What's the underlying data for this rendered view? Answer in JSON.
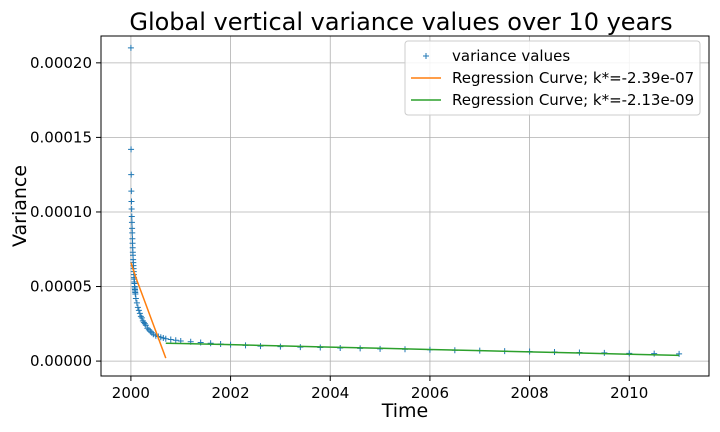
{
  "chart_data": {
    "type": "scatter",
    "title": "Global vertical variance values over 10 years",
    "xlabel": "Time",
    "ylabel": "Variance",
    "xlim": [
      1999.4,
      2011.6
    ],
    "ylim": [
      -1e-05,
      0.000218
    ],
    "grid": true,
    "legend_position": "top-right",
    "x_ticks": [
      {
        "value": 2000,
        "label": "2000"
      },
      {
        "value": 2002,
        "label": "2002"
      },
      {
        "value": 2004,
        "label": "2004"
      },
      {
        "value": 2006,
        "label": "2006"
      },
      {
        "value": 2008,
        "label": "2008"
      },
      {
        "value": 2010,
        "label": "2010"
      }
    ],
    "y_ticks": [
      {
        "value": 0.0,
        "label": "0.00000"
      },
      {
        "value": 5e-05,
        "label": "0.00005"
      },
      {
        "value": 0.0001,
        "label": "0.00010"
      },
      {
        "value": 0.00015,
        "label": "0.00015"
      },
      {
        "value": 0.0002,
        "label": "0.00020"
      }
    ],
    "series": [
      {
        "name": "variance values",
        "kind": "scatter",
        "marker": "+",
        "color": "#1f77b4",
        "x": [
          2000.0,
          2000.003,
          2000.006,
          2000.009,
          2000.012,
          2000.015,
          2000.018,
          2000.021,
          2000.024,
          2000.027,
          2000.03,
          2000.033,
          2000.036,
          2000.039,
          2000.042,
          2000.045,
          2000.048,
          2000.051,
          2000.054,
          2000.057,
          2000.06,
          2000.063,
          2000.066,
          2000.069,
          2000.072,
          2000.075,
          2000.078,
          2000.081,
          2000.084,
          2000.087,
          2000.09,
          2000.1,
          2000.12,
          2000.14,
          2000.16,
          2000.18,
          2000.2,
          2000.22,
          2000.24,
          2000.26,
          2000.28,
          2000.3,
          2000.33,
          2000.36,
          2000.39,
          2000.42,
          2000.45,
          2000.5,
          2000.55,
          2000.6,
          2000.65,
          2000.7,
          2000.8,
          2000.9,
          2001.0,
          2001.2,
          2001.4,
          2001.6,
          2001.8,
          2002.0,
          2002.3,
          2002.6,
          2003.0,
          2003.4,
          2003.8,
          2004.2,
          2004.6,
          2005.0,
          2005.5,
          2006.0,
          2006.5,
          2007.0,
          2007.5,
          2008.0,
          2008.5,
          2009.0,
          2009.5,
          2010.0,
          2010.5,
          2011.0
        ],
        "y": [
          0.00021,
          0.000142,
          0.000125,
          0.000114,
          0.000107,
          0.000102,
          9.7e-05,
          9.3e-05,
          8.9e-05,
          8.6e-05,
          8.2e-05,
          7.9e-05,
          7.6e-05,
          7.3e-05,
          7.1e-05,
          6.8e-05,
          6.6e-05,
          6.4e-05,
          6.2e-05,
          6e-05,
          5.8e-05,
          5.6e-05,
          5.5e-05,
          5.3e-05,
          5.2e-05,
          5e-05,
          4.9e-05,
          4.8e-05,
          4.7e-05,
          4.6e-05,
          4.5e-05,
          4.2e-05,
          3.9e-05,
          3.6e-05,
          3.4e-05,
          3.2e-05,
          3e-05,
          2.9e-05,
          2.7e-05,
          2.6e-05,
          2.5e-05,
          2.4e-05,
          2.2e-05,
          2.1e-05,
          2e-05,
          1.9e-05,
          1.8e-05,
          1.7e-05,
          1.65e-05,
          1.6e-05,
          1.55e-05,
          1.5e-05,
          1.45e-05,
          1.4e-05,
          1.35e-05,
          1.3e-05,
          1.25e-05,
          1.2e-05,
          1.15e-05,
          1.1e-05,
          1.05e-05,
          1e-05,
          9.7e-06,
          9.4e-06,
          9.1e-06,
          8.8e-06,
          8.5e-06,
          8.2e-06,
          7.9e-06,
          7.6e-06,
          7.3e-06,
          7e-06,
          6.7e-06,
          6.4e-06,
          6.1e-06,
          5.8e-06,
          5.5e-06,
          5.2e-06,
          5e-06,
          4.8e-06
        ]
      },
      {
        "name": "Regression Curve; k*=-2.39e-07",
        "kind": "line",
        "color": "#ff7f0e",
        "x": [
          2000.0,
          2000.05,
          2000.1,
          2000.2,
          2000.3,
          2000.4,
          2000.5,
          2000.6,
          2000.7
        ],
        "y": [
          6.6e-05,
          6.1e-05,
          5.6e-05,
          4.7e-05,
          3.8e-05,
          2.9e-05,
          2e-05,
          1.1e-05,
          2e-06
        ]
      },
      {
        "name": "Regression Curve; k*=-2.13e-09",
        "kind": "line",
        "color": "#2ca02c",
        "x": [
          2000.7,
          2001.0,
          2002.0,
          2003.0,
          2004.0,
          2005.0,
          2006.0,
          2007.0,
          2008.0,
          2009.0,
          2010.0,
          2011.0
        ],
        "y": [
          1.2e-05,
          1.18e-05,
          1.1e-05,
          1.02e-05,
          9.4e-06,
          8.6e-06,
          7.8e-06,
          7e-06,
          6.2e-06,
          5.4e-06,
          4.6e-06,
          3.8e-06
        ]
      }
    ]
  }
}
